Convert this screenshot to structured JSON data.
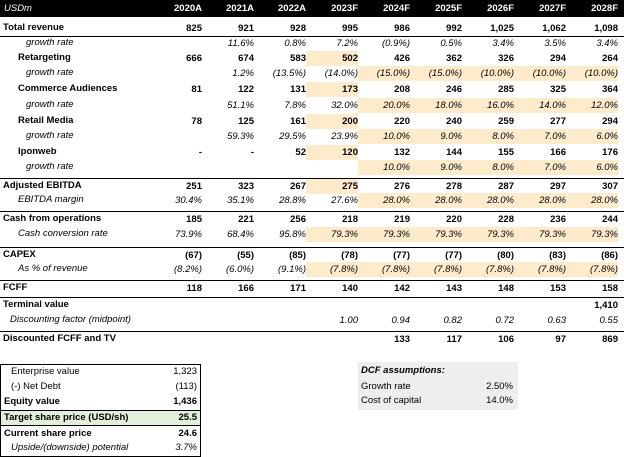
{
  "header": {
    "unit": "USDm",
    "years": [
      "2020A",
      "2021A",
      "2022A",
      "2023F",
      "2024F",
      "2025F",
      "2026F",
      "2027F",
      "2028F"
    ]
  },
  "rows": [
    {
      "label": "Total revenue",
      "values": [
        "825",
        "921",
        "928",
        "995",
        "986",
        "992",
        "1,025",
        "1,062",
        "1,098"
      ]
    },
    {
      "label": "growth rate",
      "values": [
        "",
        "11.6%",
        "0.8%",
        "7.2%",
        "(0.9%)",
        "0.5%",
        "3.4%",
        "3.5%",
        "3.4%"
      ]
    },
    {
      "label": "Retargeting",
      "values": [
        "666",
        "674",
        "583",
        "502",
        "426",
        "362",
        "326",
        "294",
        "264"
      ]
    },
    {
      "label": "growth rate",
      "values": [
        "",
        "1.2%",
        "(13.5%)",
        "(14.0%)",
        "(15.0%)",
        "(15.0%)",
        "(10.0%)",
        "(10.0%)",
        "(10.0%)"
      ]
    },
    {
      "label": "Commerce Audiences",
      "values": [
        "81",
        "122",
        "131",
        "173",
        "208",
        "246",
        "285",
        "325",
        "364"
      ]
    },
    {
      "label": "growth rate",
      "values": [
        "",
        "51.1%",
        "7.8%",
        "32.0%",
        "20.0%",
        "18.0%",
        "16.0%",
        "14.0%",
        "12.0%"
      ]
    },
    {
      "label": "Retail Media",
      "values": [
        "78",
        "125",
        "161",
        "200",
        "220",
        "240",
        "259",
        "277",
        "294"
      ]
    },
    {
      "label": "growth rate",
      "values": [
        "",
        "59.3%",
        "29.5%",
        "23.9%",
        "10.0%",
        "9.0%",
        "8.0%",
        "7.0%",
        "6.0%"
      ]
    },
    {
      "label": "Iponweb",
      "values": [
        "-",
        "-",
        "52",
        "120",
        "132",
        "144",
        "155",
        "166",
        "176"
      ]
    },
    {
      "label": "growth rate",
      "values": [
        "",
        "",
        "",
        "",
        "10.0%",
        "9.0%",
        "8.0%",
        "7.0%",
        "6.0%"
      ]
    },
    {
      "label": "Adjusted EBITDA",
      "values": [
        "251",
        "323",
        "267",
        "275",
        "276",
        "278",
        "287",
        "297",
        "307"
      ]
    },
    {
      "label": "EBITDA margin",
      "values": [
        "30.4%",
        "35.1%",
        "28.8%",
        "27.6%",
        "28.0%",
        "28.0%",
        "28.0%",
        "28.0%",
        "28.0%"
      ]
    },
    {
      "label": "Cash from operations",
      "values": [
        "185",
        "221",
        "256",
        "218",
        "219",
        "220",
        "228",
        "236",
        "244"
      ]
    },
    {
      "label": "Cash conversion rate",
      "values": [
        "73.9%",
        "68.4%",
        "95.8%",
        "79.3%",
        "79.3%",
        "79.3%",
        "79.3%",
        "79.3%",
        "79.3%"
      ]
    },
    {
      "label": "CAPEX",
      "values": [
        "(67)",
        "(55)",
        "(85)",
        "(78)",
        "(77)",
        "(77)",
        "(80)",
        "(83)",
        "(86)"
      ]
    },
    {
      "label": "As % of revenue",
      "values": [
        "(8.2%)",
        "(6.0%)",
        "(9.1%)",
        "(7.8%)",
        "(7.8%)",
        "(7.8%)",
        "(7.8%)",
        "(7.8%)",
        "(7.8%)"
      ]
    },
    {
      "label": "FCFF",
      "values": [
        "118",
        "166",
        "171",
        "140",
        "142",
        "143",
        "148",
        "153",
        "158"
      ]
    },
    {
      "label": "Terminal value",
      "values": [
        "",
        "",
        "",
        "",
        "",
        "",
        "",
        "",
        "1,410"
      ]
    },
    {
      "label": "Discounting factor (midpoint)",
      "values": [
        "",
        "",
        "",
        "1.00",
        "0.94",
        "0.82",
        "0.72",
        "0.63",
        "0.55"
      ]
    },
    {
      "label": "Discounted FCFF and TV",
      "values": [
        "",
        "",
        "",
        "",
        "133",
        "117",
        "106",
        "97",
        "869"
      ]
    }
  ],
  "valuation": [
    {
      "label": "Enterprise value",
      "value": "1,323"
    },
    {
      "label": "(-) Net Debt",
      "value": "(113)"
    },
    {
      "label": "Equity value",
      "value": "1,436"
    },
    {
      "label": "Target share price (USD/sh)",
      "value": "25.5"
    },
    {
      "label": "Current share price",
      "value": "24.6"
    },
    {
      "label": "Upside/(downside) potential",
      "value": "3.7%"
    }
  ],
  "dcf": {
    "title": "DCF assumptions:",
    "items": [
      {
        "label": "Growth rate",
        "value": "2.50%"
      },
      {
        "label": "Cost of capital",
        "value": "14.0%"
      }
    ]
  },
  "colors": {
    "highlight": "#fdebcc",
    "target_fill": "#e2efda",
    "header_bg": "#000000"
  }
}
